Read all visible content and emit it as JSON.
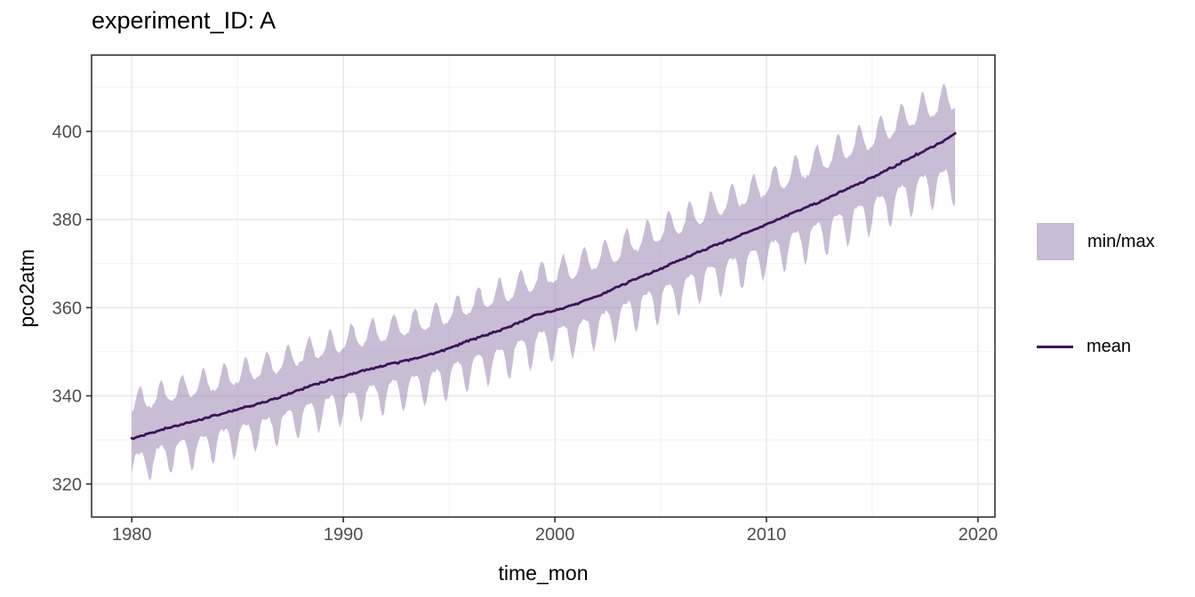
{
  "chart_data": {
    "type": "area",
    "title": "experiment_ID: A",
    "xlabel": "time_mon",
    "ylabel": "pco2atm",
    "x_ticks": [
      1980,
      1990,
      2000,
      2010,
      2020
    ],
    "x_minor_ticks": [
      1985,
      1995,
      2005,
      2015
    ],
    "y_ticks": [
      320,
      340,
      360,
      380,
      400
    ],
    "y_minor_ticks": [
      330,
      350,
      370,
      390,
      410
    ],
    "xlim": [
      1978.1,
      2020.8
    ],
    "ylim": [
      312.5,
      417.3
    ],
    "grid": true,
    "legend_position": "right",
    "legend": [
      {
        "label": "min/max",
        "type": "fill"
      },
      {
        "label": "mean",
        "type": "line"
      }
    ],
    "colors": {
      "ribbon": "#937aac",
      "ribbon_alpha": 0.5,
      "line": "#3b1458",
      "grid_major": "#e6e6e6",
      "grid_minor": "#f2f2f2",
      "panel_border": "#333333",
      "tick": "#333333",
      "tick_label": "#4d4d4d",
      "text": "#000000"
    },
    "series": {
      "x_start": 1980,
      "x_end": 2018.92,
      "sampling": "monthly",
      "years": [
        1980,
        1981,
        1982,
        1983,
        1984,
        1985,
        1986,
        1987,
        1988,
        1989,
        1990,
        1991,
        1992,
        1993,
        1994,
        1995,
        1996,
        1997,
        1998,
        1999,
        2000,
        2001,
        2002,
        2003,
        2004,
        2005,
        2006,
        2007,
        2008,
        2009,
        2010,
        2011,
        2012,
        2013,
        2014,
        2015,
        2016,
        2017,
        2018,
        2019
      ],
      "mean": [
        330.3,
        331.7,
        333.1,
        334.3,
        335.6,
        336.9,
        338.2,
        339.7,
        341.5,
        343.1,
        344.4,
        345.7,
        347.0,
        348.0,
        349.2,
        350.8,
        352.6,
        354.2,
        356.0,
        358.1,
        359.4,
        360.8,
        362.6,
        364.8,
        366.9,
        368.8,
        370.9,
        373.0,
        375.0,
        376.9,
        378.9,
        381.0,
        383.0,
        385.1,
        387.4,
        389.5,
        392.0,
        394.5,
        396.8,
        399.6
      ],
      "min": [
        319.5,
        320.8,
        322.4,
        323.3,
        324.7,
        325.8,
        327.2,
        328.5,
        330.2,
        332.0,
        333.0,
        334.4,
        335.5,
        336.6,
        337.6,
        339.1,
        341.1,
        342.4,
        344.0,
        346.2,
        347.3,
        348.8,
        350.4,
        352.5,
        354.8,
        356.4,
        358.4,
        360.7,
        362.4,
        364.1,
        366.2,
        368.0,
        370.1,
        371.9,
        374.0,
        376.2,
        378.4,
        380.6,
        382.6,
        383.0
      ],
      "max": [
        341.5,
        342.8,
        344.3,
        345.6,
        346.8,
        348.2,
        349.5,
        351.0,
        352.9,
        354.5,
        355.9,
        357.2,
        358.4,
        359.5,
        360.8,
        362.5,
        364.3,
        366.0,
        368.0,
        370.1,
        371.5,
        373.0,
        374.9,
        377.1,
        379.3,
        381.2,
        383.4,
        385.6,
        387.7,
        389.7,
        391.8,
        394.0,
        396.1,
        398.3,
        400.7,
        402.9,
        405.5,
        408.1,
        410.2,
        411.8
      ]
    }
  }
}
